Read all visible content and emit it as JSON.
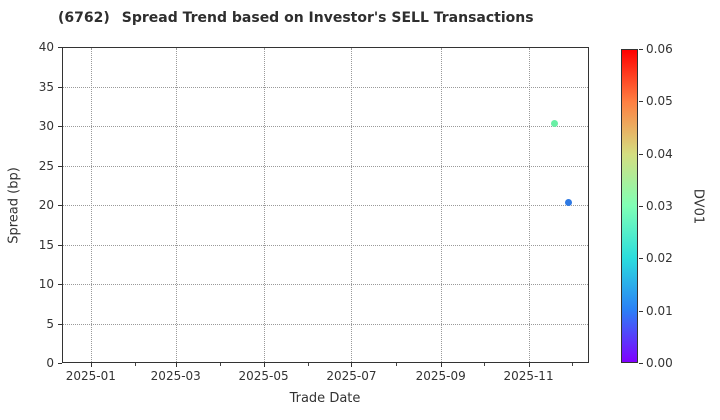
{
  "chart_data": {
    "type": "scatter",
    "title_code": "(6762)",
    "title_text": "Spread Trend based on Investor's SELL Transactions",
    "xlabel": "Trade Date",
    "ylabel": "Spread (bp)",
    "x_range": [
      "2024-12-12",
      "2025-12-13"
    ],
    "ylim": [
      0,
      40
    ],
    "y_ticks": [
      0,
      5,
      10,
      15,
      20,
      25,
      30,
      35,
      40
    ],
    "x_ticks": [
      {
        "label": "2025-01",
        "date": "2025-01-01"
      },
      {
        "label": "2025-03",
        "date": "2025-03-01"
      },
      {
        "label": "2025-05",
        "date": "2025-05-01"
      },
      {
        "label": "2025-07",
        "date": "2025-07-01"
      },
      {
        "label": "2025-09",
        "date": "2025-09-01"
      },
      {
        "label": "2025-11",
        "date": "2025-11-01"
      }
    ],
    "x_minor_ticks": [
      "2025-02-01",
      "2025-04-01",
      "2025-06-01",
      "2025-08-01",
      "2025-10-01",
      "2025-12-01"
    ],
    "grid": "dotted",
    "legend": "none",
    "points": [
      {
        "date": "2025-11-18",
        "spread": 30.4,
        "dv01": 0.028,
        "color": "#69efa5"
      },
      {
        "date": "2025-11-28",
        "spread": 20.5,
        "dv01": 0.011,
        "color": "#2e79e3"
      }
    ],
    "colorbar": {
      "label": "DV01",
      "range": [
        0.0,
        0.06
      ],
      "tick_labels": [
        "0.00",
        "0.01",
        "0.02",
        "0.03",
        "0.04",
        "0.05",
        "0.06"
      ],
      "gradient_bottom_to_top": [
        "#8000ff",
        "#2b80f6",
        "#2bdddd",
        "#80ffb5",
        "#d5dd80",
        "#ff8042",
        "#ff0000"
      ]
    },
    "colors": {
      "spine": "#333333",
      "grid": "#9a9a9a",
      "text": "#333333",
      "background": "#ffffff"
    }
  }
}
